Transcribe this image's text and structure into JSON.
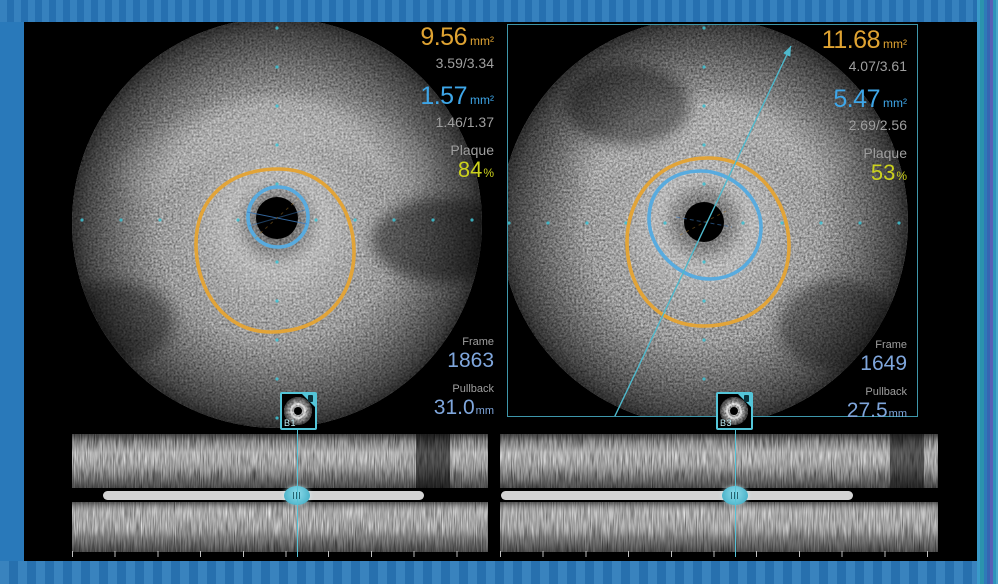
{
  "accent_colors": {
    "vessel_contour": "#dfa332",
    "lumen_contour": "#4aa8df",
    "plaque_percent": "#ccd21d",
    "frame_value_blue": "#7fa6dc",
    "cyan_accent": "#54c5d8"
  },
  "panels": {
    "left": {
      "vessel_area_value": "9.56",
      "vessel_area_unit": "mm²",
      "vessel_diameters": "3.59/3.34",
      "lumen_area_value": "1.57",
      "lumen_area_unit": "mm²",
      "lumen_diameters": "1.46/1.37",
      "plaque_label": "Plaque",
      "plaque_value": "84",
      "plaque_unit": "%",
      "frame_label": "Frame",
      "frame_value": "1863",
      "pullback_label": "Pullback",
      "pullback_value": "31.0",
      "pullback_unit": "mm",
      "bookmark_label": "B1"
    },
    "right": {
      "vessel_area_value": "11.68",
      "vessel_area_unit": "mm²",
      "vessel_diameters": "4.07/3.61",
      "lumen_area_value": "5.47",
      "lumen_area_unit": "mm²",
      "lumen_diameters": "2.69/2.56",
      "plaque_label": "Plaque",
      "plaque_value": "53",
      "plaque_unit": "%",
      "frame_label": "Frame",
      "frame_value": "1649",
      "pullback_label": "Pullback",
      "pullback_value": "27.5",
      "pullback_unit": "mm",
      "bookmark_label": "B3"
    }
  }
}
